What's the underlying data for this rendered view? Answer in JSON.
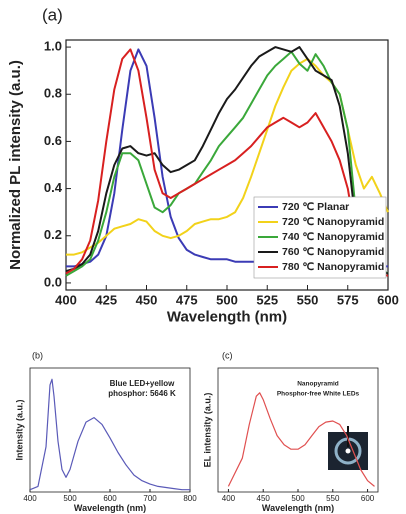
{
  "chart_data": [
    {
      "type": "line",
      "panel_label": "(a)",
      "xlabel": "Wavelength (nm)",
      "ylabel": "Normalized PL intensity (a.u.)",
      "x": [
        400,
        405,
        410,
        415,
        420,
        425,
        430,
        435,
        440,
        445,
        450,
        455,
        460,
        465,
        470,
        475,
        480,
        485,
        490,
        495,
        500,
        505,
        510,
        515,
        520,
        525,
        530,
        535,
        540,
        545,
        550,
        555,
        560,
        565,
        570,
        575,
        580,
        585,
        590,
        595,
        600
      ],
      "xlim": [
        400,
        600
      ],
      "xticks": [
        400,
        425,
        450,
        475,
        500,
        525,
        550,
        575,
        600
      ],
      "ylim": [
        -0.03,
        1.03
      ],
      "yticks": [
        {
          "value": 0,
          "label": "0.0"
        },
        0.2,
        0.4,
        0.6,
        0.8,
        {
          "value": 1,
          "label": "1.0"
        }
      ],
      "legend": "lower right",
      "series": [
        {
          "name": "720 ℃ Planar",
          "color": "#3b3bb5",
          "values": [
            0.07,
            0.07,
            0.08,
            0.09,
            0.12,
            0.2,
            0.38,
            0.65,
            0.9,
            0.99,
            0.92,
            0.7,
            0.45,
            0.28,
            0.19,
            0.14,
            0.12,
            0.11,
            0.1,
            0.1,
            0.1,
            0.09,
            0.09,
            0.09,
            0.09,
            0.09,
            0.08,
            0.08,
            0.08,
            0.08,
            0.08,
            0.08,
            0.08,
            0.08,
            0.08,
            0.07,
            0.07,
            0.07,
            0.07,
            0.07,
            0.07
          ]
        },
        {
          "name": "720 ℃ Nanopyramid",
          "color": "#f2d21a",
          "values": [
            0.12,
            0.12,
            0.13,
            0.15,
            0.17,
            0.2,
            0.23,
            0.24,
            0.25,
            0.27,
            0.26,
            0.22,
            0.2,
            0.19,
            0.2,
            0.22,
            0.25,
            0.26,
            0.27,
            0.27,
            0.28,
            0.3,
            0.36,
            0.45,
            0.55,
            0.65,
            0.75,
            0.83,
            0.9,
            0.93,
            0.95,
            0.92,
            0.88,
            0.85,
            0.8,
            0.65,
            0.5,
            0.4,
            0.45,
            0.38,
            0.3
          ]
        },
        {
          "name": "740 ℃ Nanopyramid",
          "color": "#3aa83a",
          "values": [
            0.03,
            0.05,
            0.07,
            0.1,
            0.18,
            0.3,
            0.45,
            0.55,
            0.55,
            0.52,
            0.42,
            0.32,
            0.3,
            0.33,
            0.38,
            0.4,
            0.42,
            0.47,
            0.52,
            0.58,
            0.62,
            0.66,
            0.7,
            0.76,
            0.82,
            0.88,
            0.92,
            0.95,
            0.98,
            0.93,
            0.9,
            0.97,
            0.92,
            0.85,
            0.8,
            0.65,
            0.3,
            0.15,
            0.1,
            0.06,
            0.04
          ]
        },
        {
          "name": "760 ℃ Nanopyramid",
          "color": "#1a1a1a",
          "values": [
            0.05,
            0.06,
            0.08,
            0.12,
            0.22,
            0.38,
            0.5,
            0.57,
            0.58,
            0.55,
            0.54,
            0.55,
            0.5,
            0.47,
            0.48,
            0.5,
            0.52,
            0.58,
            0.65,
            0.72,
            0.78,
            0.82,
            0.87,
            0.92,
            0.96,
            0.98,
            1.0,
            0.99,
            0.98,
            1.0,
            0.95,
            0.9,
            0.88,
            0.86,
            0.75,
            0.55,
            0.25,
            0.12,
            0.07,
            0.05,
            0.04
          ]
        },
        {
          "name": "780 ℃ Nanopyramid",
          "color": "#d82020",
          "values": [
            0.04,
            0.06,
            0.1,
            0.18,
            0.35,
            0.6,
            0.82,
            0.95,
            0.99,
            0.9,
            0.7,
            0.48,
            0.38,
            0.36,
            0.38,
            0.4,
            0.42,
            0.44,
            0.46,
            0.48,
            0.5,
            0.52,
            0.55,
            0.58,
            0.62,
            0.66,
            0.68,
            0.7,
            0.68,
            0.66,
            0.68,
            0.72,
            0.66,
            0.6,
            0.52,
            0.4,
            0.2,
            0.1,
            0.06,
            0.04,
            0.03
          ]
        }
      ]
    },
    {
      "type": "line",
      "panel_label": "(b)",
      "xlabel": "Wavelength (nm)",
      "ylabel": "Intensity (a.u.)",
      "annotation": [
        "Blue LED+yellow",
        "phosphor: 5646 K"
      ],
      "x": [
        400,
        420,
        440,
        450,
        455,
        460,
        470,
        480,
        490,
        500,
        520,
        540,
        560,
        580,
        600,
        620,
        640,
        660,
        680,
        700,
        720,
        740,
        760,
        780,
        800
      ],
      "xlim": [
        400,
        800
      ],
      "xticks": [
        400,
        500,
        600,
        700,
        800
      ],
      "ylim": [
        0,
        1.1
      ],
      "series": [
        {
          "color": "#5a5ab8",
          "values": [
            0.02,
            0.05,
            0.4,
            0.95,
            1.0,
            0.85,
            0.45,
            0.2,
            0.13,
            0.2,
            0.45,
            0.62,
            0.66,
            0.6,
            0.48,
            0.35,
            0.24,
            0.15,
            0.1,
            0.07,
            0.05,
            0.04,
            0.03,
            0.02,
            0.02
          ]
        }
      ]
    },
    {
      "type": "line",
      "panel_label": "(c)",
      "xlabel": "Wavelength (nm)",
      "ylabel": "EL intensity (a.u.)",
      "annotation": [
        "Nanopyramid",
        "Phosphor-free White LEDs"
      ],
      "x": [
        400,
        420,
        430,
        440,
        445,
        450,
        460,
        470,
        480,
        490,
        500,
        510,
        520,
        530,
        540,
        550,
        560,
        570,
        580,
        590,
        600,
        610
      ],
      "xlim": [
        385,
        615
      ],
      "xticks": [
        400,
        450,
        500,
        550,
        600
      ],
      "ylim": [
        0,
        1.1
      ],
      "series": [
        {
          "color": "#e05050",
          "values": [
            0.05,
            0.3,
            0.6,
            0.85,
            0.88,
            0.82,
            0.65,
            0.5,
            0.42,
            0.38,
            0.38,
            0.42,
            0.5,
            0.58,
            0.62,
            0.63,
            0.6,
            0.5,
            0.35,
            0.2,
            0.1,
            0.05
          ]
        }
      ]
    }
  ]
}
